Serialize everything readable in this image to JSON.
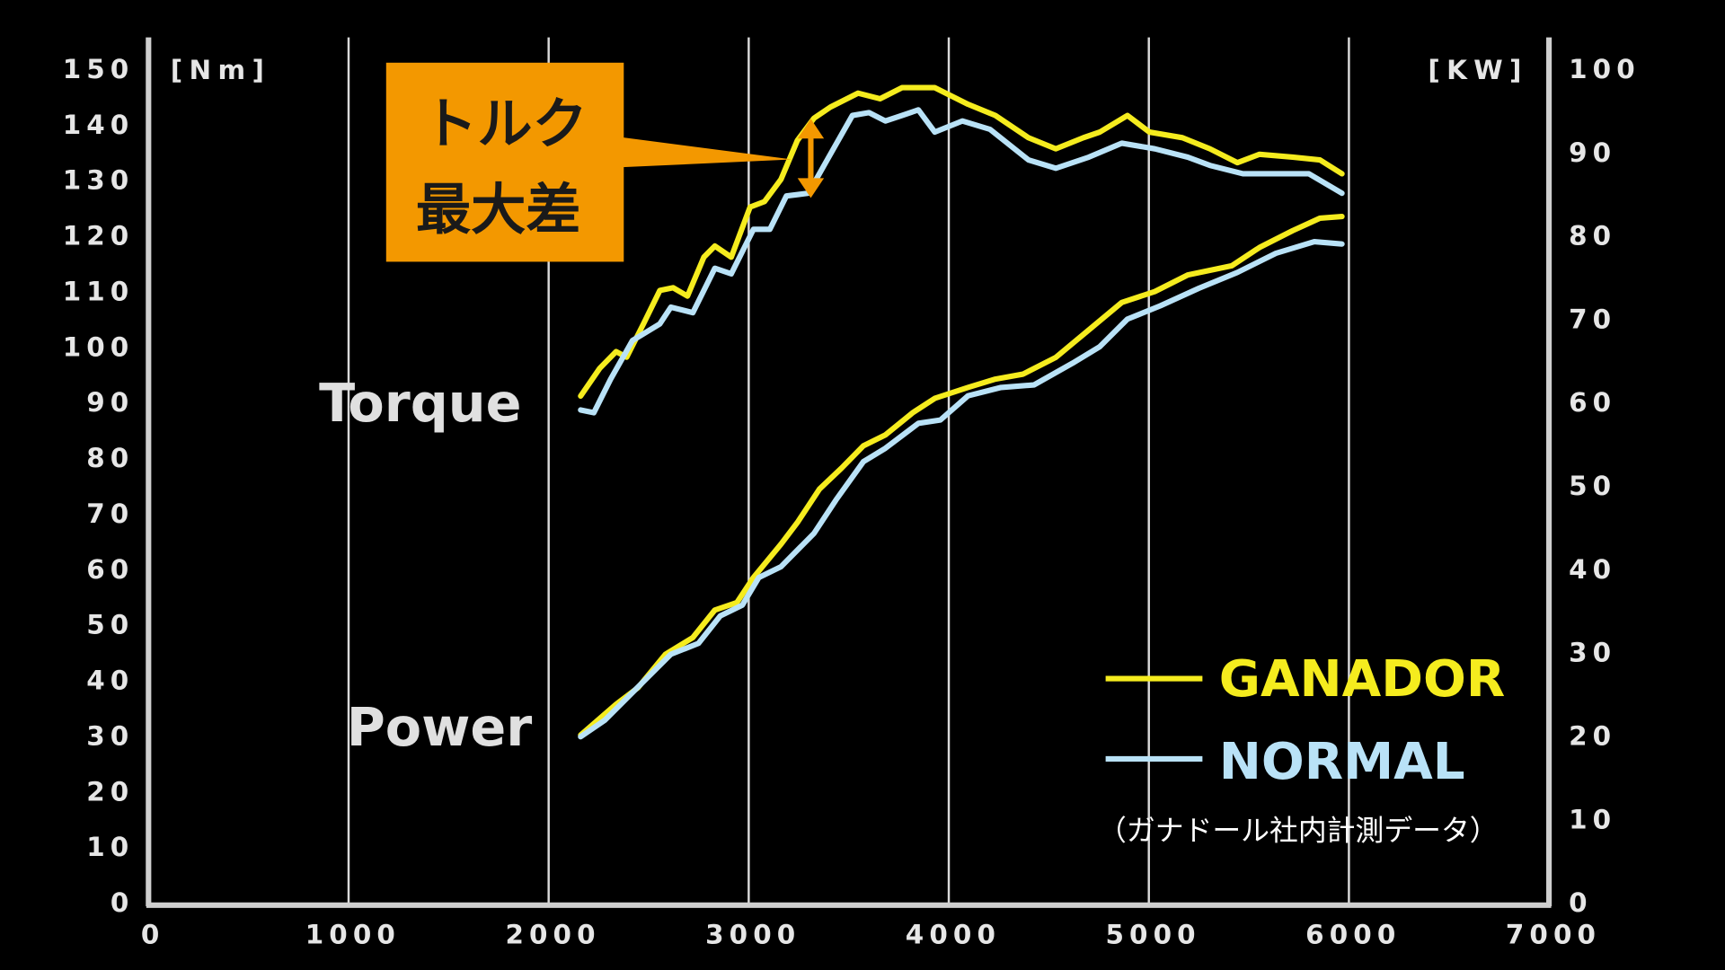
{
  "chart_data": {
    "type": "line",
    "x_ticks": [
      "0",
      "1000",
      "2000",
      "3000",
      "4000",
      "5000",
      "6000",
      "7000"
    ],
    "xlim": [
      0,
      7000
    ],
    "y_left_ticks": [
      "0",
      "10",
      "20",
      "30",
      "40",
      "50",
      "60",
      "70",
      "80",
      "90",
      "100",
      "110",
      "120",
      "130",
      "140",
      "150"
    ],
    "ylim_left": [
      0,
      150
    ],
    "y_left_unit": "[Nm]",
    "y_right_ticks": [
      "0",
      "10",
      "20",
      "30",
      "40",
      "50",
      "60",
      "70",
      "80",
      "90",
      "100"
    ],
    "ylim_right": [
      0,
      100
    ],
    "y_right_unit": "[KW]",
    "grid": "vertical",
    "curve_labels": {
      "torque": "Torque",
      "power": "Power"
    },
    "callout": {
      "line1": "トルク",
      "line2": "最大差",
      "color": "#f39800",
      "rpm": 3300
    },
    "legend": {
      "placement": "bottom-right",
      "note": "（ガナドール社内計測データ）"
    },
    "series": [
      {
        "name": "GANADOR",
        "color": "#f5ec1e",
        "quantity": "torque",
        "axis": "left",
        "x": [
          2160,
          2255,
          2337,
          2390,
          2474,
          2556,
          2622,
          2694,
          2776,
          2831,
          2913,
          3007,
          3079,
          3161,
          3243,
          3326,
          3408,
          3546,
          3656,
          3766,
          3930,
          4096,
          4233,
          4398,
          4535,
          4673,
          4755,
          4893,
          5003,
          5168,
          5305,
          5443,
          5553,
          5718,
          5855,
          5965
        ],
        "y": [
          91,
          96,
          99,
          98,
          104,
          110,
          110.5,
          109,
          116,
          118,
          116,
          125,
          126,
          130,
          137,
          141,
          143,
          145.5,
          144.5,
          146.5,
          146.5,
          143.5,
          141.5,
          137.5,
          135.5,
          137.5,
          138.5,
          141.5,
          138.5,
          137.5,
          135.5,
          133,
          134.5,
          134,
          133.5,
          131
        ]
      },
      {
        "name": "NORMAL",
        "color": "#b9e2f7",
        "quantity": "torque",
        "axis": "left",
        "x": [
          2160,
          2226,
          2309,
          2419,
          2556,
          2611,
          2721,
          2831,
          2913,
          3024,
          3106,
          3188,
          3298,
          3408,
          3518,
          3601,
          3683,
          3766,
          3848,
          3930,
          4068,
          4206,
          4398,
          4535,
          4700,
          4865,
          5030,
          5195,
          5305,
          5470,
          5635,
          5800,
          5965
        ],
        "y": [
          88.5,
          88,
          94,
          101,
          104,
          107,
          106,
          114,
          113,
          121,
          121,
          127,
          127.5,
          134.5,
          141.5,
          142,
          140.5,
          141.5,
          142.5,
          138.5,
          140.5,
          139,
          133.5,
          132,
          134,
          136.5,
          135.5,
          134,
          132.5,
          131,
          131,
          131,
          127.5
        ]
      },
      {
        "name": "GANADOR",
        "color": "#f5ec1e",
        "quantity": "power",
        "axis": "right",
        "x": [
          2160,
          2337,
          2447,
          2584,
          2721,
          2831,
          2941,
          3024,
          3161,
          3243,
          3353,
          3463,
          3573,
          3683,
          3821,
          3930,
          4096,
          4233,
          4371,
          4535,
          4700,
          4865,
          5030,
          5195,
          5415,
          5553,
          5718,
          5855,
          5965
        ],
        "y": [
          20,
          23.7,
          25.7,
          29.7,
          31.7,
          35,
          35.9,
          38.9,
          42.9,
          45.5,
          49.5,
          52,
          54.7,
          56,
          58.7,
          60.4,
          61.7,
          62.7,
          63.3,
          65.3,
          68.6,
          71.9,
          73.2,
          75.2,
          76.3,
          78.5,
          80.5,
          82,
          82.2
        ]
      },
      {
        "name": "NORMAL",
        "color": "#b9e2f7",
        "quantity": "power",
        "axis": "right",
        "x": [
          2160,
          2281,
          2419,
          2611,
          2749,
          2858,
          2968,
          3051,
          3161,
          3326,
          3436,
          3573,
          3683,
          3848,
          3958,
          4096,
          4261,
          4426,
          4618,
          4755,
          4893,
          5058,
          5250,
          5443,
          5635,
          5827,
          5965
        ],
        "y": [
          19.8,
          21.8,
          25.1,
          29.7,
          31,
          34.3,
          35.6,
          38.9,
          40.2,
          44.2,
          48.2,
          52.8,
          54.4,
          57.4,
          57.8,
          60.7,
          61.7,
          62,
          64.6,
          66.6,
          69.9,
          71.5,
          73.6,
          75.5,
          77.8,
          79.2,
          78.9
        ]
      }
    ]
  }
}
